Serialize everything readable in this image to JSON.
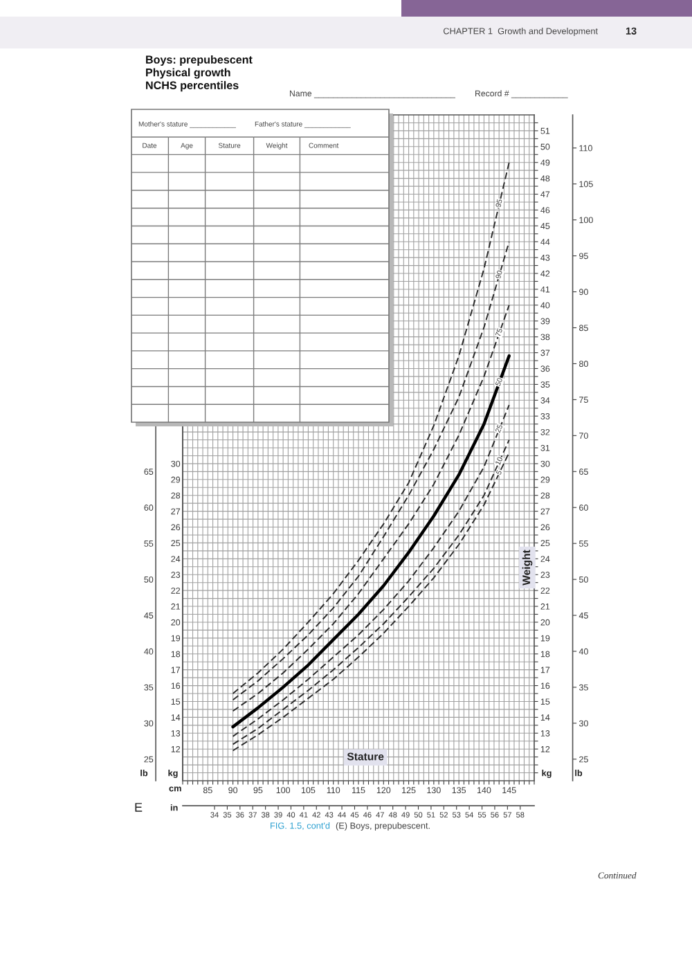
{
  "chart_data": [
    {
      "type": "line",
      "title": "Boys: prepubescent\nPhysical growth\nNCHS percentiles",
      "xlabel": "Stature",
      "annotations": [
        "CHAPTER 1  Growth and Development",
        "13",
        "Name ______________________________",
        "Record # ____________",
        "E",
        "FIG. 1.5, cont'd",
        "(E) Boys, prepubescent.",
        "Continued",
        "cm",
        "in",
        "lb",
        "kg",
        "kg",
        "lb",
        "Weight"
      ],
      "x": [
        90,
        95,
        100,
        105,
        110,
        115,
        120,
        125,
        130,
        135,
        140,
        145
      ],
      "series": [
        {
          "name": "95",
          "color": "#2a2a2a",
          "values": [
            15.5,
            16.8,
            18.3,
            20.0,
            21.8,
            23.9,
            26.2,
            28.8,
            32.4,
            36.8,
            42.3,
            49.0
          ]
        },
        {
          "name": "90",
          "color": "#2a2a2a",
          "values": [
            15.1,
            16.3,
            17.7,
            19.2,
            20.9,
            22.9,
            25.4,
            28.0,
            30.9,
            34.2,
            38.6,
            44.0
          ]
        },
        {
          "name": "75",
          "color": "#2a2a2a",
          "values": [
            14.4,
            15.5,
            16.8,
            18.3,
            19.9,
            21.8,
            24.0,
            26.2,
            28.7,
            31.8,
            35.5,
            40.0
          ]
        },
        {
          "name": "50",
          "color": "#000000",
          "line_style": "solid",
          "values": [
            13.4,
            14.6,
            15.9,
            17.3,
            18.9,
            20.5,
            22.3,
            24.4,
            26.7,
            29.3,
            32.5,
            36.8
          ]
        },
        {
          "name": "25",
          "color": "#2a2a2a",
          "values": [
            12.8,
            13.9,
            15.1,
            16.4,
            17.8,
            19.2,
            20.8,
            22.6,
            24.7,
            27.0,
            29.8,
            33.7
          ]
        },
        {
          "name": "10",
          "color": "#2a2a2a",
          "values": [
            12.3,
            13.3,
            14.5,
            15.7,
            17.0,
            18.4,
            19.9,
            21.6,
            23.4,
            25.5,
            28.0,
            31.5
          ]
        },
        {
          "name": "5",
          "color": "#2a2a2a",
          "values": [
            11.9,
            12.9,
            14.0,
            15.2,
            16.4,
            17.8,
            19.3,
            21.0,
            22.8,
            24.9,
            27.4,
            30.7
          ]
        }
      ],
      "line_style": "dashed",
      "grid": true,
      "xlim": [
        80,
        150
      ],
      "xticks": [
        {
          "value": 80,
          "label": null
        },
        {
          "value": 81,
          "label": null
        },
        {
          "value": 82,
          "label": null
        },
        {
          "value": 83,
          "label": null
        },
        {
          "value": 84,
          "label": null
        },
        85,
        {
          "value": 86,
          "label": null
        },
        {
          "value": 87,
          "label": null
        },
        {
          "value": 88,
          "label": null
        },
        {
          "value": 89,
          "label": null
        },
        90,
        {
          "value": 91,
          "label": null
        },
        {
          "value": 92,
          "label": null
        },
        {
          "value": 93,
          "label": null
        },
        {
          "value": 94,
          "label": null
        },
        95,
        {
          "value": 96,
          "label": null
        },
        {
          "value": 97,
          "label": null
        },
        {
          "value": 98,
          "label": null
        },
        {
          "value": 99,
          "label": null
        },
        100,
        {
          "value": 101,
          "label": null
        },
        {
          "value": 102,
          "label": null
        },
        {
          "value": 103,
          "label": null
        },
        {
          "value": 104,
          "label": null
        },
        105,
        {
          "value": 106,
          "label": null
        },
        {
          "value": 107,
          "label": null
        },
        {
          "value": 108,
          "label": null
        },
        {
          "value": 109,
          "label": null
        },
        110,
        {
          "value": 111,
          "label": null
        },
        {
          "value": 112,
          "label": null
        },
        {
          "value": 113,
          "label": null
        },
        {
          "value": 114,
          "label": null
        },
        115,
        {
          "value": 116,
          "label": null
        },
        {
          "value": 117,
          "label": null
        },
        {
          "value": 118,
          "label": null
        },
        {
          "value": 119,
          "label": null
        },
        120,
        {
          "value": 121,
          "label": null
        },
        {
          "value": 122,
          "label": null
        },
        {
          "value": 123,
          "label": null
        },
        {
          "value": 124,
          "label": null
        },
        125,
        {
          "value": 126,
          "label": null
        },
        {
          "value": 127,
          "label": null
        },
        {
          "value": 128,
          "label": null
        },
        {
          "value": 129,
          "label": null
        },
        130,
        {
          "value": 131,
          "label": null
        },
        {
          "value": 132,
          "label": null
        },
        {
          "value": 133,
          "label": null
        },
        {
          "value": 134,
          "label": null
        },
        135,
        {
          "value": 136,
          "label": null
        },
        {
          "value": 137,
          "label": null
        },
        {
          "value": 138,
          "label": null
        },
        {
          "value": 139,
          "label": null
        },
        140,
        {
          "value": 141,
          "label": null
        },
        {
          "value": 142,
          "label": null
        },
        {
          "value": 143,
          "label": null
        },
        {
          "value": 144,
          "label": null
        },
        145,
        {
          "value": 146,
          "label": null
        },
        {
          "value": 147,
          "label": null
        },
        {
          "value": 148,
          "label": null
        },
        {
          "value": 149,
          "label": null
        },
        {
          "value": 150,
          "label": null
        }
      ],
      "x2lim": [
        31.5,
        59.1
      ],
      "x2ticks": [
        34,
        35,
        36,
        37,
        38,
        39,
        40,
        41,
        42,
        43,
        44,
        45,
        46,
        47,
        48,
        49,
        50,
        51,
        52,
        53,
        54,
        55,
        56,
        57,
        58
      ],
      "ylim": [
        10,
        52
      ],
      "yticks": [
        {
          "value": 10.5,
          "label": null
        },
        {
          "value": 11,
          "label": null
        },
        {
          "value": 11.5,
          "label": null
        },
        12,
        {
          "value": 12.5,
          "label": null
        },
        13,
        {
          "value": 13.5,
          "label": null
        },
        14,
        {
          "value": 14.5,
          "label": null
        },
        15,
        {
          "value": 15.5,
          "label": null
        },
        16,
        {
          "value": 16.5,
          "label": null
        },
        17,
        {
          "value": 17.5,
          "label": null
        },
        18,
        {
          "value": 18.5,
          "label": null
        },
        19,
        {
          "value": 19.5,
          "label": null
        },
        20,
        {
          "value": 20.5,
          "label": null
        },
        21,
        {
          "value": 21.5,
          "label": null
        },
        22,
        {
          "value": 22.5,
          "label": null
        },
        23,
        {
          "value": 23.5,
          "label": null
        },
        24,
        {
          "value": 24.5,
          "label": null
        },
        25,
        {
          "value": 25.5,
          "label": null
        },
        26,
        {
          "value": 26.5,
          "label": null
        },
        27,
        {
          "value": 27.5,
          "label": null
        },
        28,
        {
          "value": 28.5,
          "label": null
        },
        29,
        {
          "value": 29.5,
          "label": null
        },
        30,
        {
          "value": 30.5,
          "label": null
        },
        31,
        {
          "value": 31.5,
          "label": null
        },
        32,
        {
          "value": 32.5,
          "label": null
        },
        33,
        {
          "value": 33.5,
          "label": null
        },
        34,
        {
          "value": 34.5,
          "label": null
        },
        35,
        {
          "value": 35.5,
          "label": null
        },
        36,
        {
          "value": 36.5,
          "label": null
        },
        37,
        {
          "value": 37.5,
          "label": null
        },
        38,
        {
          "value": 38.5,
          "label": null
        },
        39,
        {
          "value": 39.5,
          "label": null
        },
        40,
        {
          "value": 40.5,
          "label": null
        },
        41,
        {
          "value": 41.5,
          "label": null
        },
        42,
        {
          "value": 42.5,
          "label": null
        },
        43,
        {
          "value": 43.5,
          "label": null
        },
        44,
        {
          "value": 44.5,
          "label": null
        },
        45,
        {
          "value": 45.5,
          "label": null
        },
        46,
        {
          "value": 46.5,
          "label": null
        },
        47,
        {
          "value": 47.5,
          "label": null
        },
        48,
        {
          "value": 48.5,
          "label": null
        },
        49,
        {
          "value": 49.5,
          "label": null
        },
        50,
        {
          "value": 50.5,
          "label": null
        },
        51,
        {
          "value": 51.5,
          "label": null
        }
      ],
      "y2lim": [
        22,
        114.6
      ],
      "y2ticks": [
        25,
        30,
        35,
        40,
        45,
        50,
        55,
        60,
        65,
        70,
        75,
        80,
        85,
        90,
        95,
        100,
        105,
        110
      ]
    },
    {
      "type": "other",
      "annotations": [
        "Mother's stature ____________",
        "Father's stature ____________",
        "Date",
        "Age",
        "Stature",
        "Weight",
        "Comment"
      ]
    },
    {
      "type": "line",
      "tick_labels": "y",
      "xlim": [
        80,
        150
      ],
      "ylim": [
        10,
        52
      ],
      "yticks": [
        12,
        13,
        14,
        15,
        16,
        17,
        18,
        19,
        20,
        21,
        22,
        23,
        24,
        25,
        26,
        27,
        28,
        29,
        30
      ]
    },
    {
      "type": "line",
      "tick_labels": "y",
      "xlim": [
        80,
        150
      ],
      "ylim": [
        22,
        114.6
      ],
      "yticks": [
        25,
        30,
        35,
        40,
        45,
        50,
        55,
        60,
        65
      ]
    }
  ]
}
